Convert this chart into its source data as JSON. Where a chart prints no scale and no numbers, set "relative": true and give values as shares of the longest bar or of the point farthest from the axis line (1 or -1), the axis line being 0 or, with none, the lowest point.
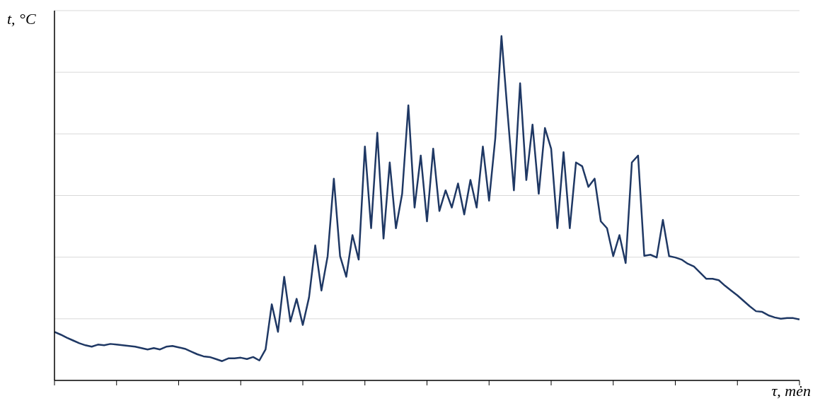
{
  "chart_data": {
    "type": "line",
    "relative": true,
    "xlabel": "τ, mėn",
    "ylabel": "t, °C",
    "grid": "y",
    "marker": "none",
    "categories": [
      null,
      null,
      null,
      null,
      null,
      null,
      null,
      null,
      null,
      null,
      null,
      null,
      null,
      null,
      null,
      null,
      null,
      null,
      null,
      null,
      null,
      null,
      null,
      null,
      null,
      null,
      null,
      null,
      null,
      null,
      null,
      null,
      null,
      null,
      null,
      null,
      null,
      null,
      null,
      null,
      null,
      null,
      null,
      null,
      null,
      null,
      null,
      null,
      null,
      null,
      null,
      null,
      null,
      null,
      null,
      null,
      null,
      null,
      null,
      null,
      null,
      null,
      null,
      null,
      null,
      null,
      null,
      null,
      null,
      null,
      null,
      null,
      null,
      null,
      null,
      null,
      null,
      null,
      null,
      null,
      null,
      null,
      null,
      null,
      null,
      null,
      null,
      null,
      null,
      null,
      null,
      null,
      null,
      null,
      null,
      null,
      null,
      null,
      null,
      null,
      null,
      null,
      null,
      null,
      null,
      null,
      null,
      null,
      null,
      null,
      null,
      null,
      null,
      null,
      null,
      null,
      null,
      null,
      null,
      null,
      null
    ],
    "series": [
      {
        "color": "#1f3864",
        "values": [
          0.141,
          0.133,
          0.124,
          0.116,
          0.108,
          0.102,
          0.098,
          0.104,
          0.102,
          0.106,
          0.104,
          0.102,
          0.1,
          0.098,
          0.094,
          0.09,
          0.094,
          0.09,
          0.098,
          0.1,
          0.096,
          0.092,
          0.084,
          0.076,
          0.07,
          0.068,
          0.062,
          0.056,
          0.064,
          0.064,
          0.066,
          0.062,
          0.068,
          0.058,
          0.09,
          0.221,
          0.141,
          0.301,
          0.171,
          0.237,
          0.161,
          0.241,
          0.392,
          0.261,
          0.361,
          0.586,
          0.361,
          0.301,
          0.422,
          0.351,
          0.679,
          0.442,
          0.719,
          0.412,
          0.633,
          0.442,
          0.542,
          0.799,
          0.502,
          0.653,
          0.462,
          0.673,
          0.492,
          0.552,
          0.502,
          0.572,
          0.482,
          0.582,
          0.502,
          0.679,
          0.522,
          0.703,
          1,
          0.773,
          0.552,
          0.863,
          0.582,
          0.743,
          0.542,
          0.733,
          0.673,
          0.442,
          0.663,
          0.442,
          0.633,
          0.622,
          0.562,
          0.586,
          0.462,
          0.442,
          0.361,
          0.422,
          0.341,
          0.633,
          0.653,
          0.362,
          0.365,
          0.357,
          0.466,
          0.361,
          0.357,
          0.351,
          0.339,
          0.331,
          0.313,
          0.295,
          0.295,
          0.291,
          0.275,
          0.261,
          0.247,
          0.231,
          0.215,
          0.201,
          0.199,
          0.189,
          0.183,
          0.179,
          0.181,
          0.181,
          0.177
        ]
      }
    ]
  }
}
